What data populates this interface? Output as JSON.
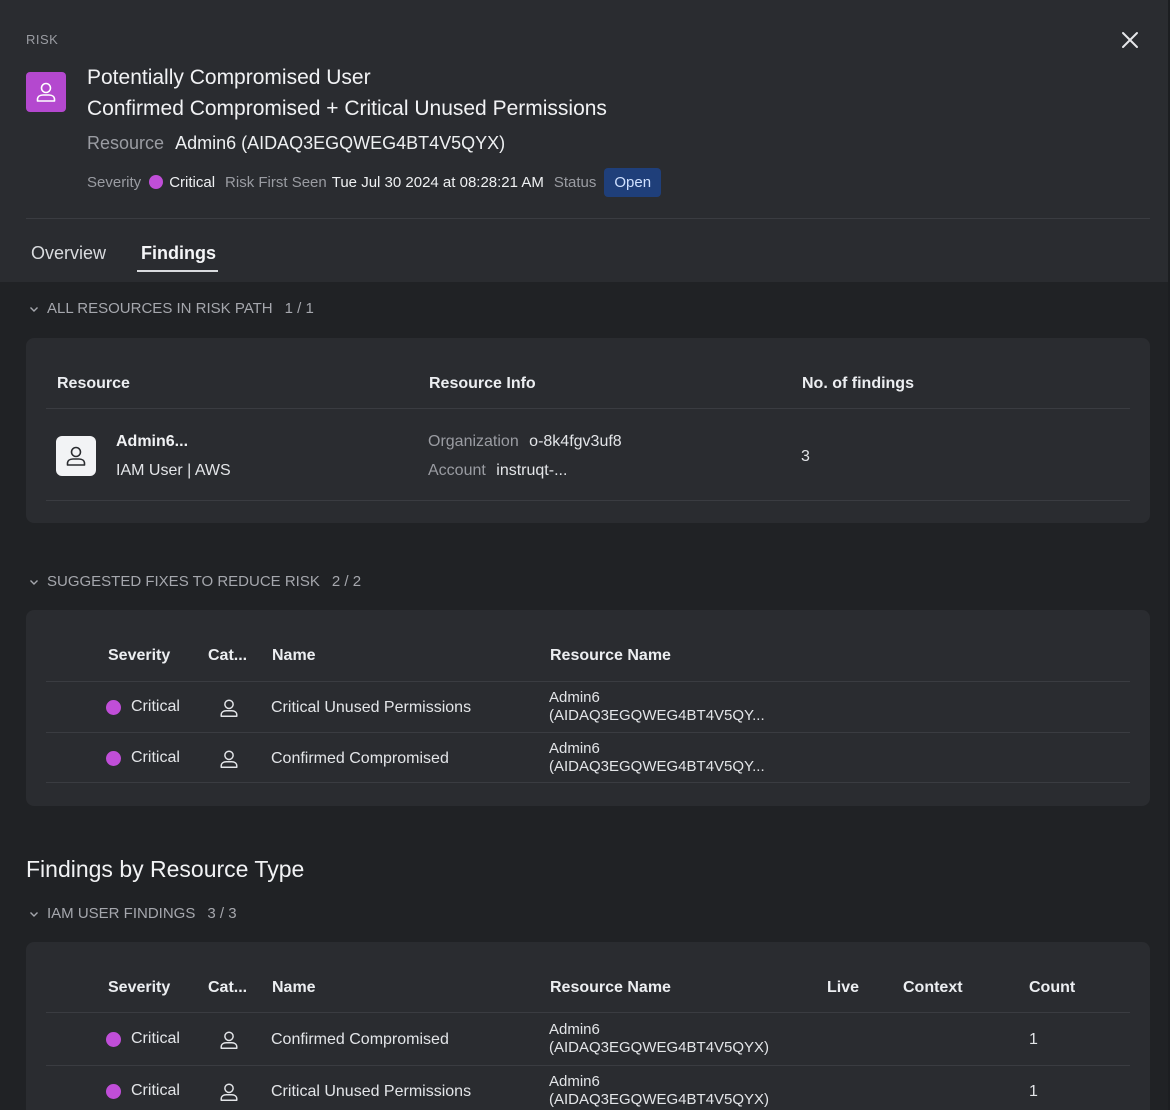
{
  "header": {
    "kicker": "RISK",
    "title_line1": "Potentially Compromised User",
    "title_line2": "Confirmed Compromised + Critical Unused Permissions",
    "resource_label": "Resource",
    "resource_value": "Admin6 (AIDAQ3EGQWEG4BT4V5QYX)",
    "severity_label": "Severity",
    "severity_value": "Critical",
    "first_seen_label": "Risk First Seen",
    "first_seen_value": "Tue Jul 30 2024 at 08:28:21 AM",
    "status_label": "Status",
    "status_value": "Open",
    "icons": {
      "close": "close-icon",
      "risk": "user-icon"
    }
  },
  "tabs": [
    {
      "label": "Overview",
      "active": false
    },
    {
      "label": "Findings",
      "active": true
    }
  ],
  "colors": {
    "critical": "#c04ed8",
    "status_open_bg": "#1f3f7a",
    "panel_bg": "#2a2c30",
    "body_bg": "#202225"
  },
  "resources_section": {
    "title": "ALL RESOURCES IN RISK PATH",
    "count": "1 / 1",
    "columns": [
      "Resource",
      "Resource Info",
      "No. of findings"
    ],
    "rows": [
      {
        "name": "Admin6...",
        "type": "IAM User | AWS",
        "org_label": "Organization",
        "org_value": "o-8k4fgv3uf8",
        "account_label": "Account",
        "account_value": "instruqt-...",
        "findings": "3"
      }
    ]
  },
  "fixes_section": {
    "title": "SUGGESTED FIXES TO REDUCE RISK",
    "count": "2 / 2",
    "columns": [
      "Severity",
      "Cat...",
      "Name",
      "Resource Name"
    ],
    "rows": [
      {
        "severity": "Critical",
        "name": "Critical Unused Permissions",
        "resource_line1": "Admin6",
        "resource_line2": "(AIDAQ3EGQWEG4BT4V5QY..."
      },
      {
        "severity": "Critical",
        "name": "Confirmed Compromised",
        "resource_line1": "Admin6",
        "resource_line2": "(AIDAQ3EGQWEG4BT4V5QY..."
      }
    ]
  },
  "findings_by_type": {
    "heading": "Findings by Resource Type",
    "iam_section": {
      "title": "IAM USER FINDINGS",
      "count": "3 / 3",
      "columns": [
        "Severity",
        "Cat...",
        "Name",
        "Resource Name",
        "Live",
        "Context",
        "Count"
      ],
      "rows": [
        {
          "severity": "Critical",
          "name": "Confirmed Compromised",
          "resource_line1": "Admin6",
          "resource_line2": "(AIDAQ3EGQWEG4BT4V5QYX)",
          "count": "1"
        },
        {
          "severity": "Critical",
          "name": "Critical Unused Permissions",
          "resource_line1": "Admin6",
          "resource_line2": "(AIDAQ3EGQWEG4BT4V5QYX)",
          "count": "1"
        }
      ]
    }
  }
}
